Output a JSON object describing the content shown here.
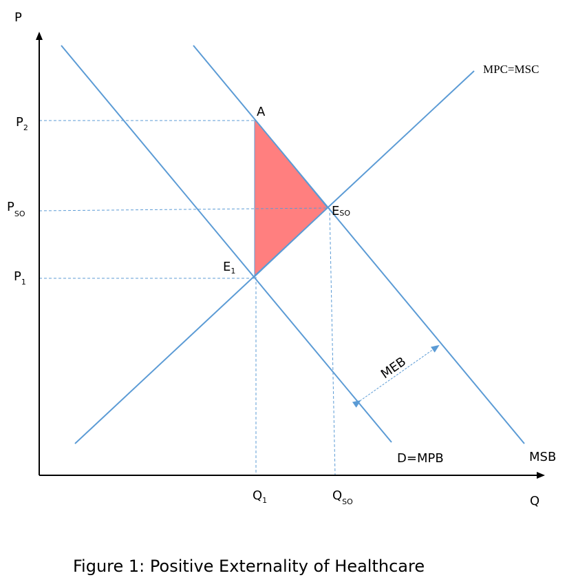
{
  "axes": {
    "y_label": "P",
    "x_label": "Q"
  },
  "price_labels": {
    "p2": {
      "main": "P",
      "sub": "2"
    },
    "pso": {
      "main": "P",
      "sub": "SO"
    },
    "p1": {
      "main": "P",
      "sub": "1"
    }
  },
  "quantity_labels": {
    "q1": {
      "main": "Q",
      "sub": "1"
    },
    "qso": {
      "main": "Q",
      "sub": "SO"
    }
  },
  "points": {
    "a": "A",
    "eso": {
      "main": "E",
      "sub": "SO"
    },
    "e1": {
      "main": "E",
      "sub": "1"
    }
  },
  "curves": {
    "supply": "MPC=MSC",
    "demand": "D=MPB",
    "msb": "MSB",
    "meb": "MEB"
  },
  "caption": "Figure 1: Positive Externality of Healthcare",
  "colors": {
    "curve": "#5b9bd5",
    "triangle": "#ff7f7f",
    "axis": "#000000"
  }
}
